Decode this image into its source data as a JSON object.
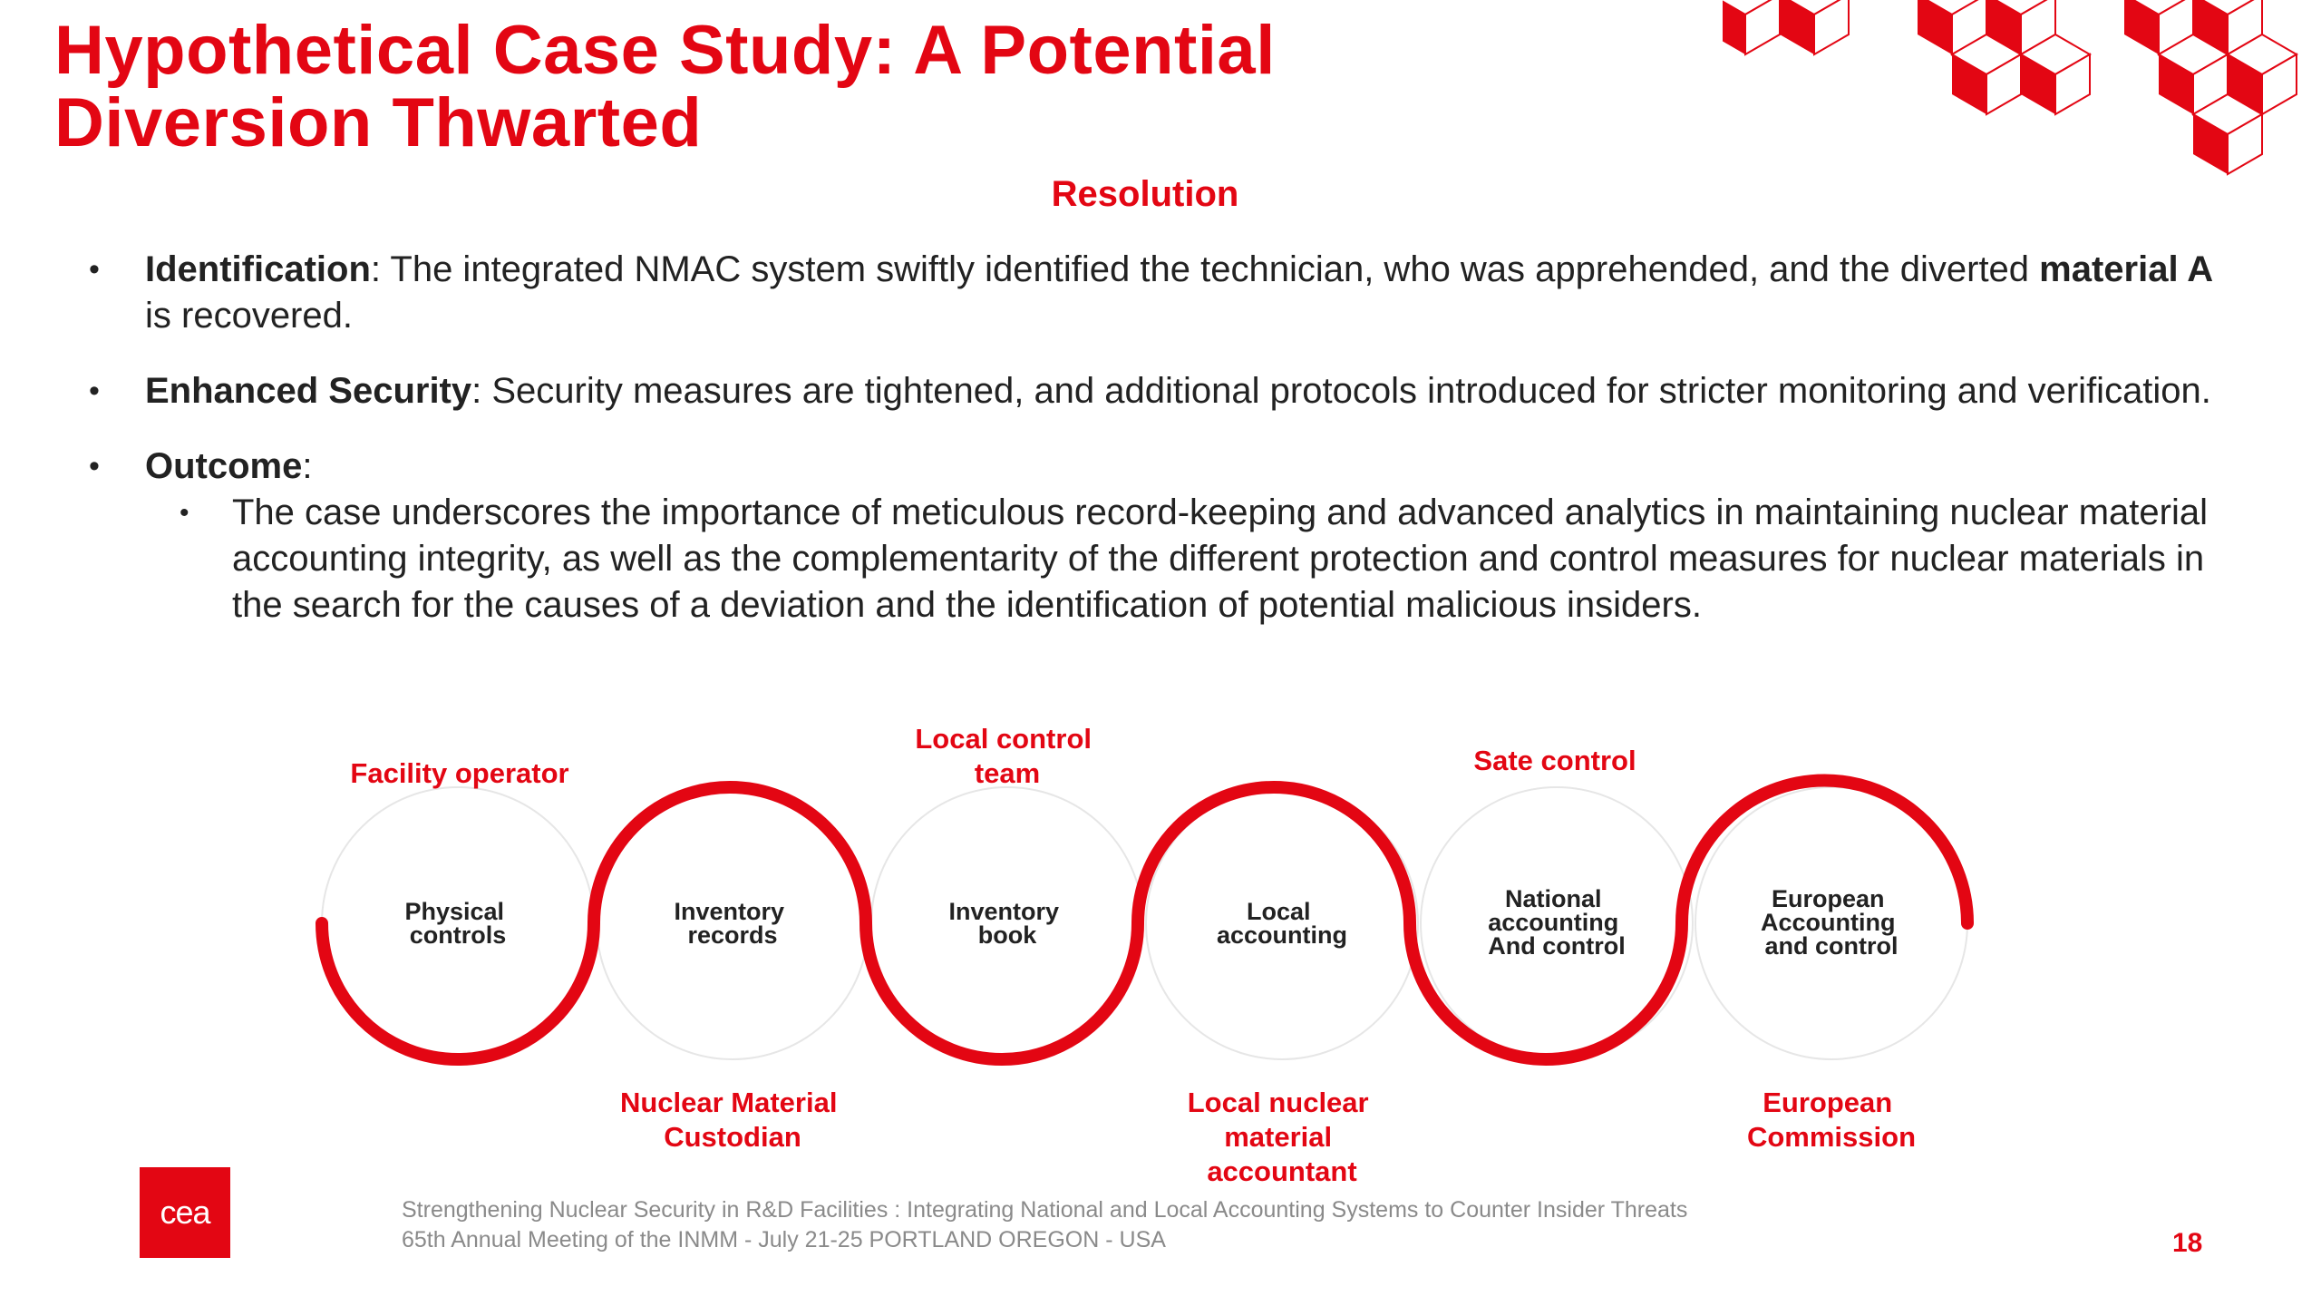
{
  "title": {
    "line1": "Hypothetical Case Study: A Potential",
    "line2": "Diversion Thwarted"
  },
  "section_heading": "Resolution",
  "bullets": [
    {
      "label": "Identification",
      "text1": ": The integrated NMAC system swiftly identified the technician, who was apprehended, and the diverted ",
      "bold2": "material A",
      "text2": "  is recovered."
    },
    {
      "label": "Enhanced Security",
      "text1": ": Security measures are tightened, and additional protocols introduced for stricter monitoring and verification."
    },
    {
      "label": "Outcome",
      "text1": ":",
      "sub": "The case underscores the importance of meticulous record-keeping and advanced analytics in maintaining nuclear material accounting integrity, as well as the complementarity of the different protection and control measures for nuclear materials in the search for the causes of a deviation and the identification of potential malicious insiders."
    }
  ],
  "diagram": {
    "nodes": [
      {
        "line1": "Physical",
        "line2": "controls"
      },
      {
        "line1": "Inventory",
        "line2": "records"
      },
      {
        "line1": "Inventory",
        "line2": "book"
      },
      {
        "line1": "Local",
        "line2": "accounting"
      },
      {
        "line1": "National",
        "line2": "accounting",
        "line3": "And control"
      },
      {
        "line1": "European",
        "line2": "Accounting",
        "line3": "and control"
      }
    ],
    "top_labels": [
      {
        "line1": "Facility operator"
      },
      {
        "line1": "Local control",
        "line2": "team"
      },
      {
        "line1": "Sate control"
      }
    ],
    "bottom_labels": [
      {
        "line1": "Nuclear Material",
        "line2": "Custodian"
      },
      {
        "line1": "Local nuclear",
        "line2": "material",
        "line3": "accountant"
      },
      {
        "line1": "European",
        "line2": "Commission"
      }
    ]
  },
  "footer": {
    "logo_text": "cea",
    "line1": "Strengthening Nuclear Security in R&D Facilities : Integrating National and Local Accounting Systems to Counter Insider Threats",
    "line2": "65th Annual Meeting of the INMM - July 21-25 PORTLAND OREGON - USA"
  },
  "page_number": "18",
  "colors": {
    "accent": "#E30613",
    "text": "#222222",
    "footer_text": "#8a8a8a"
  }
}
